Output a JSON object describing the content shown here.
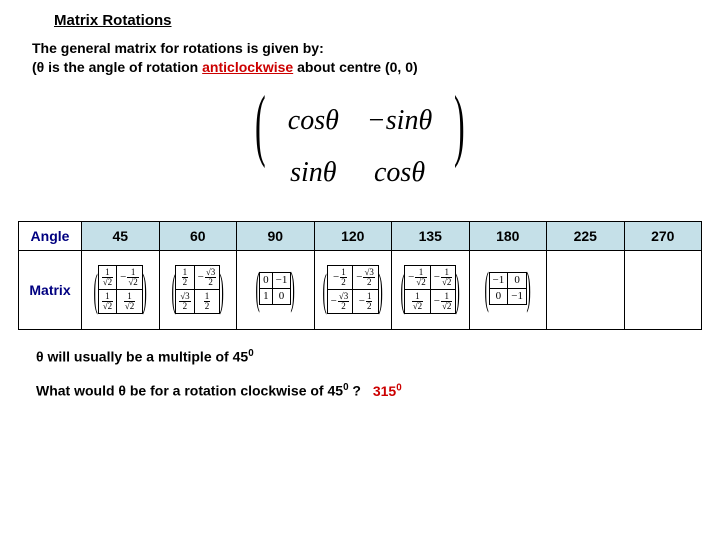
{
  "title": "Matrix Rotations",
  "intro_line1": "The general matrix for rotations is given by:",
  "intro_line2_prefix": "(θ is the angle of rotation ",
  "intro_anticlockwise": "anticlockwise",
  "intro_line2_suffix": " about centre (0, 0)",
  "big_matrix": {
    "a": "cosθ",
    "b": "−sinθ",
    "c": "sinθ",
    "d": "cosθ"
  },
  "table": {
    "row1_header": "Angle",
    "row2_header": "Matrix",
    "angles": [
      "45",
      "60",
      "90",
      "120",
      "135",
      "180",
      "225",
      "270"
    ]
  },
  "footer": "θ will usually be a multiple of 45",
  "footer_sup": "0",
  "question": "What would θ be for a rotation clockwise of  45",
  "question_sup": "0",
  "question_tail": " ?",
  "answer": "315",
  "answer_sup": "0",
  "colors": {
    "header_bg": "#c5e0e8",
    "accent_red": "#cc0000",
    "label_blue": "#000080"
  }
}
